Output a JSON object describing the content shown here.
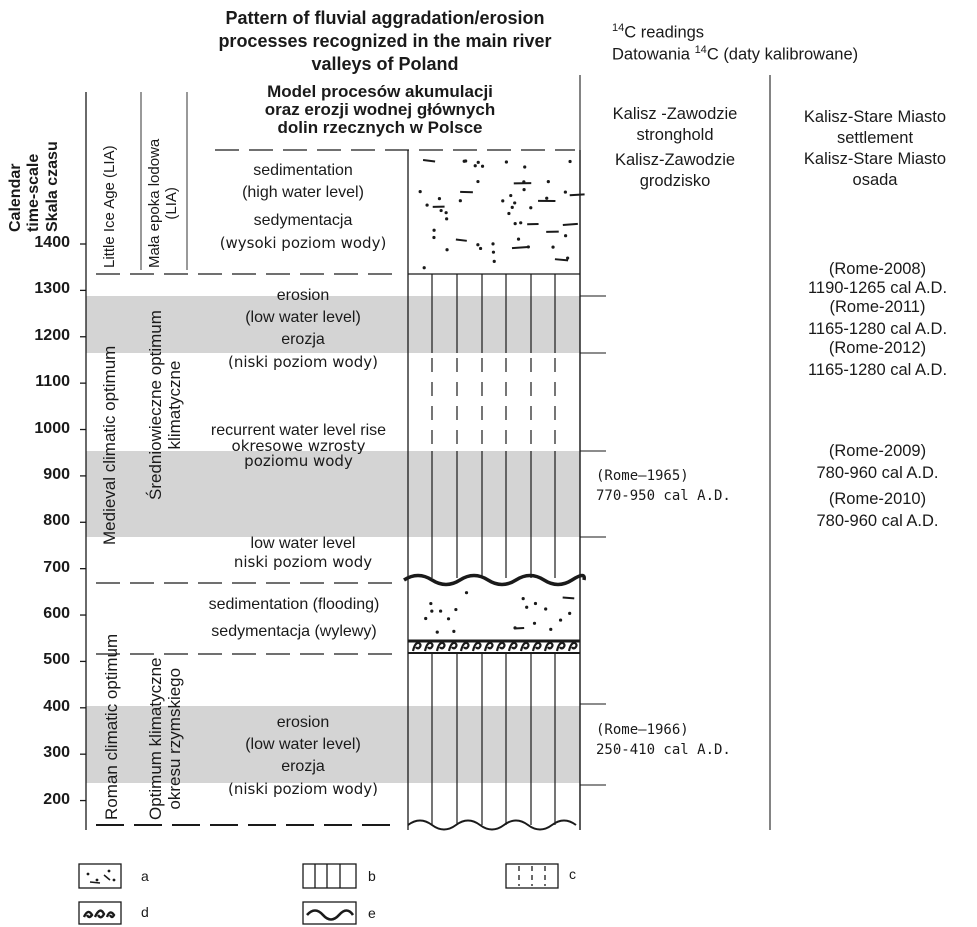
{
  "header": {
    "title_en_lines": [
      "Pattern of fluvial aggradation/erosion",
      "processes recognized in the main river",
      "valleys of Poland"
    ],
    "title_pl_lines": [
      "Model procesów akumulacji",
      "oraz erozji wodnej głównych",
      "dolin rzecznych w Polsce"
    ],
    "c14_readings": "C readings",
    "c14_pl": "Datowania ",
    "c14_pl_tail": "C  (daty kalibrowane)",
    "c14_sup": "14"
  },
  "axis": {
    "title_en": "Calendar time-scale",
    "title_pl": "Skala czasu",
    "title_en_line1": "Calendar",
    "title_en_line2": "time-scale",
    "ticks": [
      1400,
      1300,
      1200,
      1100,
      1000,
      900,
      800,
      700,
      600,
      500,
      400,
      300,
      200
    ]
  },
  "periods": {
    "lia_en": "Little Ice Age (LIA)",
    "lia_pl": "Mała epoka lodowa (LIA)",
    "lia_pl_line1": "Mała epoka lodowa",
    "lia_pl_line2": "(LIA)",
    "medieval_en": "Medieval climatic optimum",
    "medieval_pl_line1": "Średniowieczne optimum",
    "medieval_pl_line2": "klimatyczne",
    "roman_en": "Roman climatic optimum",
    "roman_pl_line1": "Optimum klimatyczne",
    "roman_pl_line2": "okresu rzymskiego"
  },
  "processes": {
    "p1_en1": "sedimentation",
    "p1_en2": "(high water level)",
    "p1_pl1": "sedymentacja",
    "p1_pl2": "(wysoki poziom wody)",
    "p2_en1": "erosion",
    "p2_en2": "(low water level)",
    "p2_pl1": "erozja",
    "p2_pl2": "(niski poziom wody)",
    "p3_en": "recurrent water level rise",
    "p3_pl1": "okresowe wzrosty",
    "p3_pl2": "poziomu wody",
    "p4_en": "low water level",
    "p4_pl": "niski poziom wody",
    "p5_en": "sedimentation (flooding)",
    "p5_pl": "sedymentacja (wylewy)",
    "p6_en1": "erosion",
    "p6_en2": "(low water level)",
    "p6_pl1": "erozja",
    "p6_pl2": "(niski poziom wody)"
  },
  "sites": {
    "zawodzie_en1": "Kalisz -Zawodzie",
    "zawodzie_en2": "stronghold",
    "zawodzie_pl1": "Kalisz-Zawodzie",
    "zawodzie_pl2": "grodzisko",
    "stare_en1": "Kalisz-Stare Miasto",
    "stare_en2": "settlement",
    "stare_pl1": "Kalisz-Stare Miasto",
    "stare_pl2": "osada"
  },
  "dates": {
    "rome1965_code": "(Rome–1965)",
    "rome1965_range": "770-950 cal A.D.",
    "rome1966_code": "(Rome–1966)",
    "rome1966_range": "250-410 cal A.D.",
    "rome2008_code": "(Rome-2008)",
    "rome2008_range": "1190-1265 cal A.D.",
    "rome2011_code": "(Rome-2011)",
    "rome2011_range": "1165-1280 cal A.D.",
    "rome2012_code": "(Rome-2012)",
    "rome2012_range": "1165-1280 cal A.D.",
    "rome2009_code": "(Rome-2009)",
    "rome2009_range": "780-960 cal A.D.",
    "rome2010_code": "(Rome-2010)",
    "rome2010_range": "780-960 cal A.D."
  },
  "legend": {
    "a": "a",
    "b": "b",
    "c": "c",
    "d": "d",
    "e": "e"
  },
  "colors": {
    "band": "#d4d4d4",
    "ink": "#1a1a1a",
    "line": "#333333"
  }
}
